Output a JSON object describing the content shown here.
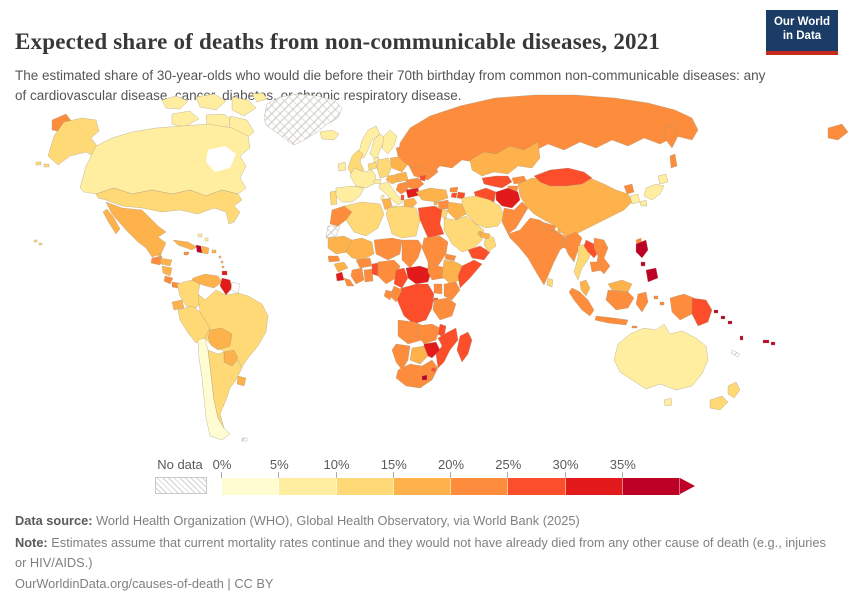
{
  "header": {
    "title": "Expected share of deaths from non-communicable diseases, 2021",
    "subtitle": "The estimated share of 30-year-olds who would die before their 70th birthday from common non-communicable diseases: any of cardiovascular disease, cancer, diabetes, or chronic respiratory disease.",
    "logo": {
      "line1": "Our World",
      "line2": "in Data",
      "bg": "#1a3c66",
      "stripe": "#c7291d"
    }
  },
  "legend": {
    "no_data_label": "No data",
    "tick_labels": [
      "0%",
      "5%",
      "10%",
      "15%",
      "20%",
      "25%",
      "30%",
      "35%"
    ]
  },
  "map": {
    "type": "choropleth",
    "palette": [
      "#FFFCD1",
      "#FFEDA0",
      "#FED976",
      "#FEB24C",
      "#FD8D3C",
      "#FC4E2A",
      "#E31A1C",
      "#BD0026"
    ],
    "no_data_color": "#e8e8e8",
    "regions": {
      "canada": 1,
      "usa": 2,
      "greenland": "no_data",
      "iceland": 1,
      "hawaii": 2,
      "mexico": 3,
      "guatemala": 4,
      "belize": 3,
      "honduras": 3,
      "nicaragua": 3,
      "costa-rica": 4,
      "panama": 4,
      "cuba": 3,
      "jamaica": 4,
      "haiti": 7,
      "dominican-republic": 3,
      "puerto-rico": 3,
      "bahamas": 1,
      "lesser-antilles": 3,
      "trinidad": 6,
      "colombia": 2,
      "venezuela": 3,
      "guyana": 6,
      "suriname": "excluded",
      "ecuador": 3,
      "peru": 2,
      "brazil": 2,
      "bolivia": 3,
      "paraguay": 3,
      "chile": 0,
      "argentina": 2,
      "uruguay": 3,
      "falkland": "no_data",
      "ireland": 1,
      "uk": 2,
      "portugal": 2,
      "spain": 1,
      "france": 1,
      "benelux": 2,
      "germany": 2,
      "switzerland": 1,
      "austria-czechia": 3,
      "italy": 1,
      "denmark": 1,
      "norway": 1,
      "sweden": 1,
      "finland": 1,
      "baltics": 4,
      "poland": 3,
      "belarus": 4,
      "ukraine": 4,
      "romania": 4,
      "moldova": 5,
      "hungary-slovakia": 3,
      "serbia-balkans": 4,
      "bulgaria": 6,
      "albania": 5,
      "greece": 3,
      "russia": 4,
      "georgia": 4,
      "armenia": 5,
      "azerbaijan": 5,
      "turkey": 3,
      "syria": 4,
      "cyprus": 3,
      "lebanon-israel": 2,
      "jordan": 2,
      "iraq": 3,
      "kuwait": 3,
      "saudi-arabia": 2,
      "yemen": 5,
      "oman": 2,
      "uae": 3,
      "qatar": 3,
      "iran": 2,
      "kazakhstan": 3,
      "turkmenistan": 5,
      "uzbekistan": 5,
      "kyrgyzstan": 4,
      "tajikistan": 4,
      "afghanistan": 6,
      "pakistan": 4,
      "india": 4,
      "nepal": 4,
      "bhutan": 3,
      "bangladesh": 4,
      "sri-lanka": 2,
      "china": 3,
      "mongolia": 5,
      "north-korea": 4,
      "south-korea": 1,
      "japan": 1,
      "taiwan": 4,
      "myanmar": 4,
      "thailand": 2,
      "laos": 5,
      "vietnam": 4,
      "cambodia": 4,
      "malaysia": 3,
      "sumatra": 4,
      "borneo-malaysia": 3,
      "kalimantan": 4,
      "java": 4,
      "sulawesi": 4,
      "moluccas": 4,
      "philippines": 7,
      "west-papua": 4,
      "papua-new-guinea": 5,
      "solomon-islands": 7,
      "vanuatu": 7,
      "fiji": 7,
      "new-caledonia": "no_data",
      "australia": 1,
      "tasmania": 1,
      "new-zealand": 2,
      "morocco": 4,
      "western-sahara": "no_data",
      "algeria": 2,
      "tunisia": 3,
      "libya": 2,
      "egypt": 5,
      "mauritania": 3,
      "mali": 3,
      "niger": 4,
      "chad": 4,
      "sudan": 4,
      "eritrea": 4,
      "djibouti": 4,
      "senegal": 4,
      "guinea": 3,
      "sierra-leone": 6,
      "liberia": 4,
      "ivory-coast": 4,
      "ghana": 4,
      "burkina-faso": 4,
      "togo-benin": 5,
      "nigeria": 4,
      "cameroon": 5,
      "central-african-republic": 6,
      "south-sudan": 4,
      "ethiopia": 3,
      "somalia": 5,
      "kenya": 4,
      "uganda": 4,
      "rwanda-burundi": 5,
      "drc": 5,
      "congo": 4,
      "gabon": 4,
      "tanzania": 4,
      "angola": 4,
      "zambia": 4,
      "malawi": 5,
      "mozambique": 5,
      "zimbabwe": 6,
      "botswana": 3,
      "namibia": 4,
      "south-africa": 4,
      "lesotho": 7,
      "eswatini": 5,
      "madagascar": 5
    }
  },
  "footer": {
    "source_label": "Data source:",
    "source_text": " World Health Organization (WHO), Global Health Observatory, via World Bank (2025)",
    "note_label": "Note:",
    "note_text": " Estimates assume that current mortality rates continue and they would not have already died from any other cause of death (e.g., injuries or HIV/AIDS.)",
    "link": "OurWorldinData.org/causes-of-death | CC BY"
  }
}
